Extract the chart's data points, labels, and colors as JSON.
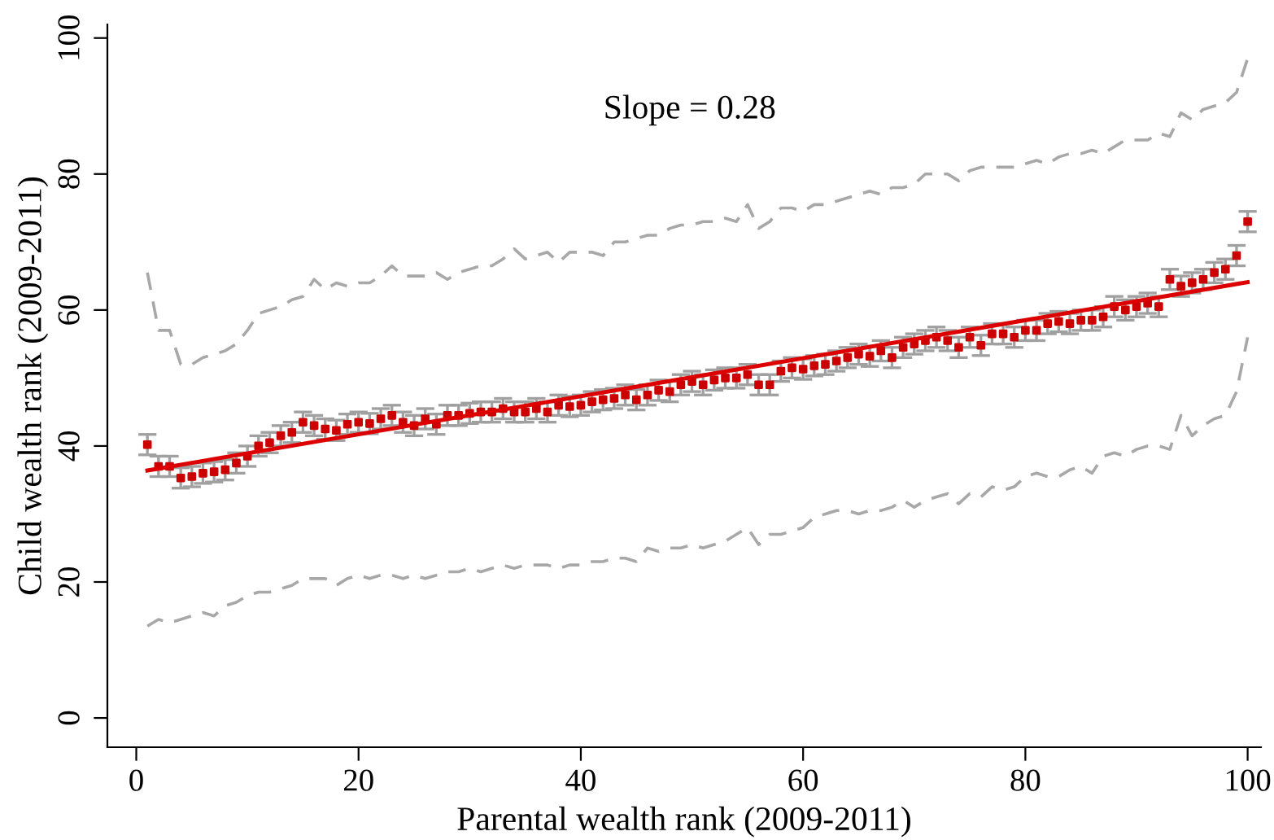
{
  "chart_data": {
    "type": "scatter",
    "xlabel": "Parental wealth rank (2009-2011)",
    "ylabel": "Child wealth rank (2009-2011)",
    "annotations": [
      "Slope = 0.28"
    ],
    "xlim": [
      -2.6,
      101.2
    ],
    "ylim": [
      -4.3,
      102
    ],
    "xticks": [
      0,
      20,
      40,
      60,
      80,
      100
    ],
    "yticks": [
      0,
      20,
      40,
      60,
      80,
      100
    ],
    "grid": false,
    "legend": false,
    "x": [
      1,
      2,
      3,
      4,
      5,
      6,
      7,
      8,
      9,
      10,
      11,
      12,
      13,
      14,
      15,
      16,
      17,
      18,
      19,
      20,
      21,
      22,
      23,
      24,
      25,
      26,
      27,
      28,
      29,
      30,
      31,
      32,
      33,
      34,
      35,
      36,
      37,
      38,
      39,
      40,
      41,
      42,
      43,
      44,
      45,
      46,
      47,
      48,
      49,
      50,
      51,
      52,
      53,
      54,
      55,
      56,
      57,
      58,
      59,
      60,
      61,
      62,
      63,
      64,
      65,
      66,
      67,
      68,
      69,
      70,
      71,
      72,
      73,
      74,
      75,
      76,
      77,
      78,
      79,
      80,
      81,
      82,
      83,
      84,
      85,
      86,
      87,
      88,
      89,
      90,
      91,
      92,
      93,
      94,
      95,
      96,
      97,
      98,
      99,
      100
    ],
    "series": [
      {
        "type": "line",
        "line_style": "dashed",
        "marker": "none",
        "color": "#a8a8a8",
        "values": [
          65.5,
          57,
          57,
          52,
          52,
          53,
          53.5,
          54,
          55,
          57,
          59.5,
          60,
          60.5,
          61.5,
          62,
          64.5,
          63,
          64,
          63.5,
          64,
          64,
          65,
          66.5,
          65,
          65,
          65,
          65.5,
          64.5,
          65.5,
          66,
          66.5,
          66.5,
          67.5,
          69,
          67.5,
          68,
          68.5,
          67,
          68.5,
          68.5,
          68.5,
          68,
          70,
          70,
          70.5,
          71,
          71,
          72,
          72.5,
          72.5,
          73,
          73,
          73.5,
          73,
          75.5,
          72,
          73,
          75,
          75,
          74.5,
          75.5,
          75.5,
          76,
          76.5,
          77,
          77.5,
          77,
          78,
          78,
          78.5,
          80,
          80,
          80,
          79,
          80.5,
          81,
          81,
          81,
          81,
          81.5,
          82,
          81.5,
          82.5,
          83,
          83,
          83.5,
          83,
          84,
          85,
          85,
          85,
          86,
          85.5,
          89,
          88,
          89.5,
          90,
          90.5,
          92,
          97
        ]
      },
      {
        "type": "line",
        "line_style": "dashed",
        "marker": "none",
        "color": "#a8a8a8",
        "values": [
          13.5,
          14.5,
          14,
          14.5,
          15,
          15.5,
          15,
          16.5,
          17,
          18,
          18.5,
          18.5,
          19,
          19.5,
          20.5,
          20.5,
          20.5,
          19.5,
          20.5,
          21,
          20.5,
          21,
          21,
          20.5,
          21,
          20.5,
          21,
          21.5,
          21.5,
          22,
          21.5,
          22,
          22.5,
          22,
          22.5,
          22.5,
          22.5,
          22,
          22.5,
          22.5,
          23,
          23,
          23.5,
          23.5,
          23,
          25,
          24.5,
          25,
          25,
          25.5,
          25,
          25.5,
          26,
          27,
          28,
          25.5,
          27,
          27,
          27.5,
          28,
          29.5,
          30,
          30.5,
          30.5,
          30,
          30.5,
          30.5,
          31,
          32,
          31,
          32,
          32.5,
          33,
          31.5,
          33,
          32.5,
          34,
          33.5,
          34,
          35.5,
          36,
          35.5,
          35.5,
          36.5,
          37,
          36,
          38.5,
          39,
          38.5,
          39.5,
          40,
          40,
          39.5,
          44.5,
          41.5,
          43,
          44,
          44.5,
          48,
          56
        ]
      },
      {
        "marker": "square",
        "color": "#cc0000",
        "errors": [
          1.5,
          1.5,
          1.5,
          1.5,
          1.5,
          1.5,
          1.5,
          1.5,
          1.5,
          1.5,
          1.5,
          1.5,
          1.5,
          1.5,
          1.5,
          1.5,
          1.5,
          1.5,
          1.5,
          1.5,
          1.5,
          1.5,
          1.5,
          1.5,
          1.5,
          1.5,
          1.5,
          1.5,
          1.5,
          1.5,
          1.5,
          1.5,
          1.5,
          1.5,
          1.5,
          1.5,
          1.5,
          1.5,
          1.5,
          1.5,
          1.5,
          1.5,
          1.5,
          1.5,
          1.5,
          1.5,
          1.5,
          1.5,
          1.5,
          1.5,
          1.5,
          1.5,
          1.5,
          1.5,
          1.5,
          1.5,
          1.5,
          1.5,
          1.5,
          1.5,
          1.5,
          1.5,
          1.5,
          1.5,
          1.5,
          1.5,
          1.5,
          1.5,
          1.5,
          1.5,
          1.5,
          1.5,
          1.5,
          1.5,
          1.5,
          1.5,
          1.5,
          1.5,
          1.5,
          1.5,
          1.5,
          1.5,
          1.5,
          1.5,
          1.5,
          1.5,
          1.5,
          1.5,
          1.5,
          1.5,
          1.5,
          1.5,
          1.5,
          1.5,
          1.5,
          1.5,
          1.5,
          1.5,
          1.5,
          1.5
        ],
        "values": [
          40.2,
          37,
          37,
          35.3,
          35.5,
          36,
          36.2,
          36.5,
          37.5,
          38.5,
          40,
          40.5,
          41.5,
          42,
          43.5,
          43,
          42.5,
          42.3,
          43.2,
          43.5,
          43.3,
          44,
          44.5,
          43.5,
          43,
          44,
          43.2,
          44.5,
          44.5,
          44.8,
          45,
          45,
          45.5,
          45,
          45,
          45.5,
          45,
          46,
          45.8,
          46,
          46.5,
          46.8,
          47,
          47.5,
          46.8,
          47.5,
          48.2,
          48,
          49,
          49.5,
          49,
          49.7,
          50,
          50,
          50.5,
          49,
          49,
          51,
          51.5,
          51.3,
          51.8,
          52,
          52.5,
          53,
          53.5,
          53.2,
          54,
          53,
          54.5,
          55,
          55.5,
          56,
          55.5,
          54.5,
          56,
          54.8,
          56.5,
          56.5,
          56,
          57,
          57,
          58,
          58.3,
          58,
          58.5,
          58.5,
          59,
          60.5,
          60,
          60.5,
          61,
          60.5,
          64.5,
          63.5,
          64,
          64.5,
          65.5,
          66,
          68,
          73
        ]
      },
      {
        "type": "line",
        "line_style": "solid",
        "marker": "none",
        "color": "#dd0000",
        "x": [
          1,
          100
        ],
        "values": [
          36.4,
          64.1
        ]
      }
    ]
  }
}
